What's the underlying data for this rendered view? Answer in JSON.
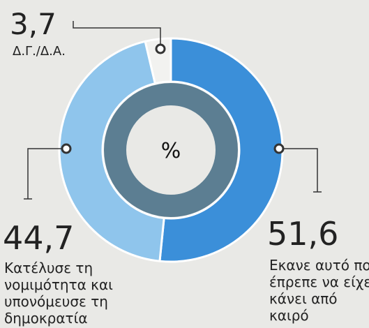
{
  "chart_data": {
    "type": "donut",
    "center_label": "%",
    "categories": [
      "Εκανε αυτό που έπρεπε να είχε κάνει από καιρό",
      "Κατέλυσε τη νομιμότητα και υπονόμευσε τη δημοκρατία",
      "Δ.Γ./Δ.Α."
    ],
    "values": [
      51.6,
      44.7,
      3.7
    ],
    "value_labels": [
      "51,6",
      "44,7",
      "3,7"
    ],
    "colors": [
      "#3b8fd9",
      "#8fc5ec",
      "#f2f2f0"
    ]
  }
}
